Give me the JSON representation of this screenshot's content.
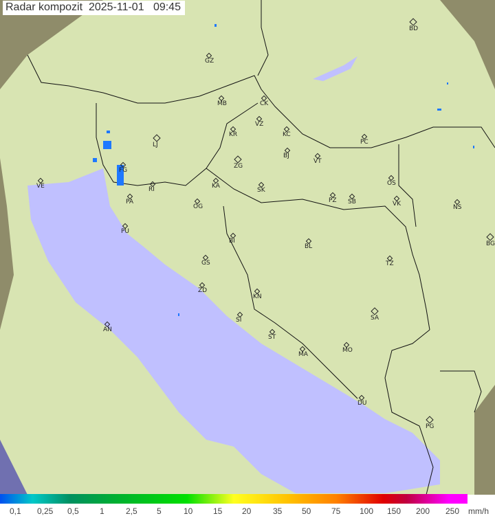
{
  "header": {
    "title": "Radar kompozit",
    "date": "2025-11-01",
    "time": "09:45"
  },
  "cities": [
    {
      "code": "GZ",
      "type": "dot"
    },
    {
      "code": "BD",
      "type": "capital"
    },
    {
      "code": "MB",
      "type": "dot"
    },
    {
      "code": "CK",
      "type": "dot"
    },
    {
      "code": "VZ",
      "type": "dot"
    },
    {
      "code": "KR",
      "type": "dot"
    },
    {
      "code": "KC",
      "type": "dot"
    },
    {
      "code": "LJ",
      "type": "capital"
    },
    {
      "code": "PC",
      "type": "dot"
    },
    {
      "code": "BJ",
      "type": "dot"
    },
    {
      "code": "VT",
      "type": "dot"
    },
    {
      "code": "ZG",
      "type": "capital"
    },
    {
      "code": "FG",
      "type": "dot"
    },
    {
      "code": "VE",
      "type": "dot"
    },
    {
      "code": "KA",
      "type": "dot"
    },
    {
      "code": "RI",
      "type": "dot"
    },
    {
      "code": "SK",
      "type": "dot"
    },
    {
      "code": "OS",
      "type": "dot"
    },
    {
      "code": "PZ",
      "type": "dot"
    },
    {
      "code": "SB",
      "type": "dot"
    },
    {
      "code": "VK",
      "type": "dot"
    },
    {
      "code": "NS",
      "type": "dot"
    },
    {
      "code": "PA",
      "type": "dot"
    },
    {
      "code": "OG",
      "type": "dot"
    },
    {
      "code": "PU",
      "type": "dot"
    },
    {
      "code": "BI",
      "type": "dot"
    },
    {
      "code": "BL",
      "type": "dot"
    },
    {
      "code": "BG",
      "type": "capital"
    },
    {
      "code": "GS",
      "type": "dot"
    },
    {
      "code": "TZ",
      "type": "dot"
    },
    {
      "code": "ZD",
      "type": "dot"
    },
    {
      "code": "KN",
      "type": "dot"
    },
    {
      "code": "SA",
      "type": "capital"
    },
    {
      "code": "SI",
      "type": "dot"
    },
    {
      "code": "AN",
      "type": "dot"
    },
    {
      "code": "ST",
      "type": "dot"
    },
    {
      "code": "MA",
      "type": "dot"
    },
    {
      "code": "MO",
      "type": "dot"
    },
    {
      "code": "DU",
      "type": "dot"
    },
    {
      "code": "PG",
      "type": "capital"
    }
  ],
  "legend": {
    "labels": [
      "0,1",
      "0,25",
      "0,5",
      "1",
      "2,5",
      "5",
      "10",
      "15",
      "20",
      "35",
      "50",
      "75",
      "100",
      "150",
      "200",
      "250"
    ],
    "unit": "mm/h"
  },
  "colors": {
    "sea": "#c0c0ff",
    "land": "#d8e6b0",
    "outside": "#8a8a68",
    "precip": "#1e78ff"
  }
}
